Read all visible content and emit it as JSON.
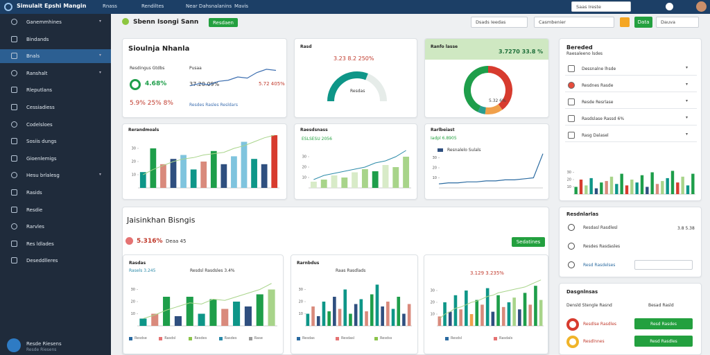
{
  "topbar": {
    "brand": "Simulait Epshi Mangin",
    "menu": [
      "Rnass",
      "Rendiltes",
      "Near Dahsnalanins",
      "Mavis"
    ],
    "search": "Saas Ireste"
  },
  "sidebar": {
    "items": [
      "Ganemmhines",
      "Bindands",
      "Bnals",
      "Ranshalt",
      "Rleputlans",
      "Cessiadiess",
      "Codelsloes",
      "Sosiis dungs",
      "Gioenlemigs",
      "Hesu brlalesg",
      "Rasids",
      "Resdie",
      "Rarvles",
      "Res ldlades",
      "Deseddlleres"
    ],
    "user": "Resde Riesens",
    "user_sub": "Resde Riesens"
  },
  "toolbar": {
    "title": "Sbenn Isongi Sann",
    "button": "Resdaen",
    "search1": "Dsads Ieedas",
    "search2": "Casmbenier",
    "button2": "Data",
    "dropdown": "Dauva"
  },
  "card1": {
    "title": "Sioulnja Nhanla",
    "label1": "Resdingus Gtdbs",
    "label2": "Pusaa",
    "stat1": "4.68%",
    "stat2": "37.20.09%",
    "stat3": "5.72 405%",
    "stat4": "5.9% 25% 8%",
    "legend": "Resdes Rasles Resldars",
    "chart": {
      "type": "line",
      "ylim": [
        0,
        12
      ],
      "values": [
        2,
        3,
        2.5,
        4,
        4.5,
        6,
        5.5,
        8,
        9.5,
        9
      ],
      "color": "#3d6fb0"
    }
  },
  "card2": {
    "title": "Rasd",
    "stat": "3.23 8.2 250%",
    "gauge_label": "Resdas",
    "chart": {
      "type": "gauge",
      "ylim": [
        0,
        100
      ],
      "value": 62,
      "color": "#0e9688"
    }
  },
  "card3": {
    "title": "Ranfo lasse",
    "stat": "3.7270 33.8 %",
    "donut_label": "5.32 6%",
    "chart": {
      "type": "donut",
      "values": [
        40,
        12,
        5,
        43
      ],
      "colors": [
        "#d73b2e",
        "#f0a04b",
        "#2a9d8f",
        "#1e9e4a"
      ]
    }
  },
  "card4": {
    "title": "Rerandmoals",
    "chart": {
      "type": "bar",
      "ylim": [
        0,
        40
      ],
      "yticks": [
        10,
        20,
        30
      ],
      "values": [
        12,
        30,
        18,
        22,
        25,
        14,
        20,
        28,
        18,
        24,
        35,
        22,
        18,
        40
      ],
      "colors": [
        "#0e9688",
        "#1e9e4a",
        "#d98a7c",
        "#2f4f7f",
        "#7fc4de",
        "#0e9688",
        "#d98a7c",
        "#1e9e4a",
        "#2f4f7f",
        "#7fc4de",
        "#7fc4de",
        "#0e9688",
        "#2f4f7f",
        "#d73b2e"
      ],
      "line": [
        10,
        14,
        17,
        20,
        22,
        23,
        25,
        26,
        27,
        30,
        32,
        35,
        38,
        40
      ],
      "line_color": "#a8d48a"
    }
  },
  "card5": {
    "title": "Raesdsnass",
    "stat": "ESLSESU 2056",
    "chart": {
      "type": "bar",
      "ylim": [
        0,
        40
      ],
      "yticks": [
        10,
        20,
        30
      ],
      "values": [
        6,
        8,
        12,
        10,
        15,
        18,
        16,
        22,
        20,
        30
      ],
      "colors": [
        "#d8ebc8",
        "#a8d48a",
        "#d8ebc8",
        "#a8d48a",
        "#d8ebc8",
        "#a8d48a",
        "#1e9e4a",
        "#d8ebc8",
        "#a8d48a",
        "#a8d48a"
      ],
      "line": [
        8,
        12,
        14,
        16,
        18,
        20,
        24,
        26,
        30,
        36
      ],
      "line_color": "#2a8aa8"
    }
  },
  "card6": {
    "title": "Rarlbeiast",
    "stat": "Iadpl 6.8905",
    "legend": "Resnalelo Sulals",
    "chart": {
      "type": "line",
      "ylim": [
        0,
        40
      ],
      "yticks": [
        10,
        20,
        30
      ],
      "values": [
        4,
        5,
        5,
        6,
        6,
        7,
        7,
        8,
        8,
        9,
        10,
        34
      ],
      "color": "#2a6aa0"
    }
  },
  "right1": {
    "title": "Bereded",
    "subtitle": "Raesaleeno lsdes",
    "rows": [
      "Dessnalne lhsde",
      "Resdnes Rasde",
      "Resde Resrlase",
      "Rasdslase Rassd 6%",
      "Rasg Dalasel"
    ],
    "chart": {
      "type": "bar",
      "ylim": [
        0,
        40
      ],
      "yticks": [
        10,
        20,
        30
      ],
      "values": [
        10,
        20,
        12,
        22,
        8,
        16,
        18,
        24,
        14,
        28,
        12,
        20,
        16,
        26,
        10,
        30,
        14,
        18,
        22,
        32,
        16,
        24,
        12,
        28
      ],
      "colors": [
        "#1e9e4a",
        "#d73b2e",
        "#a8d48a",
        "#0e9688",
        "#2f4f7f",
        "#1e9e4a",
        "#d98a7c",
        "#a8d48a",
        "#0e9688",
        "#1e9e4a",
        "#d73b2e",
        "#a8d48a",
        "#0e9688",
        "#1e9e4a",
        "#2f4f7f",
        "#1e9e4a",
        "#d98a7c",
        "#a8d48a",
        "#0e9688",
        "#1e9e4a",
        "#d73b2e",
        "#a8d48a",
        "#0e9688",
        "#1e9e4a"
      ]
    }
  },
  "big": {
    "title": "Jaisinkhan Bisngis",
    "stat": "5.316%",
    "stat2": "Deaa 45",
    "button": "Sedatines",
    "chart1": {
      "title": "Rasdas",
      "stat": "Rasels 3.245",
      "legend": "Resdsl Rasdsles 3.4%",
      "foot": [
        "Resdse",
        "Rasdsl",
        "Resdes",
        "Rasdes",
        "Rase"
      ],
      "chart": {
        "type": "bar",
        "ylim": [
          0,
          40
        ],
        "yticks": [
          10,
          20,
          30
        ],
        "values": [
          6,
          10,
          24,
          8,
          24,
          10,
          22,
          14,
          20,
          16,
          26,
          30
        ],
        "colors": [
          "#0e9688",
          "#d98a7c",
          "#1e9e4a",
          "#2f4f7f",
          "#1e9e4a",
          "#0e9688",
          "#1e9e4a",
          "#d98a7c",
          "#0e9688",
          "#2f4f7f",
          "#1e9e4a",
          "#a8d48a"
        ],
        "line": [
          6,
          9,
          13,
          16,
          19,
          18,
          22,
          21,
          24,
          27,
          30,
          35
        ],
        "line_color": "#a8d48a"
      }
    },
    "chart2": {
      "title": "Rarnbdus",
      "legend": "Raas Rasdlads",
      "foot": [
        "Resdas",
        "Resdasl",
        "Resdss"
      ],
      "chart": {
        "type": "bar",
        "ylim": [
          0,
          40
        ],
        "yticks": [
          10,
          20,
          30
        ],
        "values": [
          10,
          16,
          8,
          20,
          12,
          24,
          14,
          30,
          10,
          18,
          22,
          12,
          26,
          34,
          16,
          20,
          14,
          24,
          10,
          18
        ],
        "colors": [
          "#0e9688",
          "#d98a7c",
          "#2f4f7f",
          "#0e9688",
          "#1e9e4a",
          "#2f4f7f",
          "#d98a7c",
          "#0e9688",
          "#1e9e4a",
          "#2f4f7f",
          "#0e9688",
          "#d98a7c",
          "#1e9e4a",
          "#0e9688",
          "#2f4f7f",
          "#d98a7c",
          "#0e9688",
          "#1e9e4a",
          "#2f4f7f",
          "#d98a7c"
        ]
      }
    },
    "chart3": {
      "stat": "3.129 3.235%",
      "foot": [
        "Resdsl",
        "Rasdals"
      ],
      "chart": {
        "type": "bar",
        "ylim": [
          0,
          40
        ],
        "yticks": [
          10,
          20,
          30
        ],
        "values": [
          8,
          20,
          12,
          26,
          14,
          30,
          10,
          22,
          18,
          32,
          12,
          26,
          16,
          20,
          24,
          14,
          28,
          18,
          34,
          22
        ],
        "colors": [
          "#d98a7c",
          "#0e9688",
          "#2f4f7f",
          "#0e9688",
          "#d98a7c",
          "#0e9688",
          "#f0a04b",
          "#1e9e4a",
          "#d98a7c",
          "#0e9688",
          "#2f4f7f",
          "#1e9e4a",
          "#d98a7c",
          "#0e9688",
          "#a8d48a",
          "#2f4f7f",
          "#1e9e4a",
          "#d98a7c",
          "#1e9e4a",
          "#a8d48a"
        ],
        "line": [
          6,
          10,
          12,
          15,
          16,
          18,
          20,
          21,
          23,
          25,
          26,
          28,
          29,
          30,
          31,
          32,
          33,
          35,
          37,
          39
        ],
        "line_color": "#a8d48a"
      }
    }
  },
  "right2": {
    "title": "Resdnlarlas",
    "rows": [
      "Resdasl Rasdlesl",
      "Resdes Rasdasles",
      "Resd Rasdelses"
    ],
    "row1_value": "3.8 5.38"
  },
  "right3": {
    "title": "Dasgnlnsas",
    "subtitle": "Densld Stengle Rasnd",
    "subtitle2": "Besad Rasld",
    "rows": [
      "Resdlse Rasdles",
      "Resdlnnes"
    ],
    "buttons": [
      "Resd Rasdes",
      "Resd Rasdles"
    ]
  }
}
